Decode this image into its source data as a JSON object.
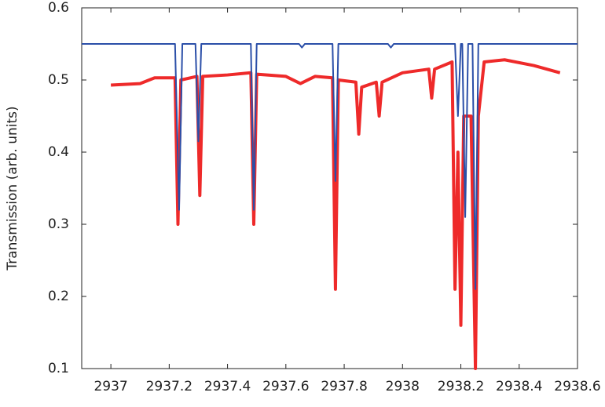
{
  "chart_data": {
    "type": "line",
    "y_label": "Transmission (arb. units)",
    "xlim": [
      2936.9,
      2938.6
    ],
    "xticks": [
      2937,
      2937.2,
      2937.4,
      2937.6,
      2937.8,
      2938,
      2938.2,
      2938.4,
      2938.6
    ],
    "ylim": [
      0.1,
      0.6
    ],
    "yticks": [
      0.1,
      0.2,
      0.3,
      0.4,
      0.5,
      0.6
    ],
    "grid": false,
    "series": [
      {
        "color": "#ee2a2a",
        "x": [
          2937.0,
          2937.1,
          2937.15,
          2937.22,
          2937.23,
          2937.24,
          2937.295,
          2937.305,
          2937.315,
          2937.4,
          2937.48,
          2937.49,
          2937.5,
          2937.6,
          2937.65,
          2937.7,
          2937.76,
          2937.77,
          2937.78,
          2937.84,
          2937.85,
          2937.86,
          2937.91,
          2937.92,
          2937.93,
          2938.0,
          2938.09,
          2938.1,
          2938.11,
          2938.17,
          2938.18,
          2938.19,
          2938.2,
          2938.21,
          2938.235,
          2938.25,
          2938.26,
          2938.28,
          2938.35,
          2938.45,
          2938.54
        ],
        "values": [
          0.493,
          0.495,
          0.503,
          0.503,
          0.3,
          0.5,
          0.505,
          0.34,
          0.505,
          0.507,
          0.51,
          0.3,
          0.508,
          0.505,
          0.495,
          0.505,
          0.503,
          0.21,
          0.5,
          0.497,
          0.425,
          0.49,
          0.497,
          0.45,
          0.497,
          0.51,
          0.515,
          0.475,
          0.515,
          0.525,
          0.21,
          0.4,
          0.16,
          0.45,
          0.45,
          0.1,
          0.45,
          0.525,
          0.528,
          0.52,
          0.51
        ]
      },
      {
        "color": "#2b4fa8",
        "x": [
          2936.9,
          2937.22,
          2937.234,
          2937.245,
          2937.29,
          2937.3,
          2937.31,
          2937.48,
          2937.49,
          2937.5,
          2937.645,
          2937.655,
          2937.665,
          2937.76,
          2937.77,
          2937.78,
          2937.95,
          2937.96,
          2937.97,
          2938.18,
          2938.19,
          2938.2,
          2938.205,
          2938.215,
          2938.225,
          2938.24,
          2938.25,
          2938.26,
          2938.6
        ],
        "values": [
          0.55,
          0.55,
          0.32,
          0.55,
          0.55,
          0.415,
          0.55,
          0.55,
          0.32,
          0.55,
          0.55,
          0.545,
          0.55,
          0.55,
          0.36,
          0.55,
          0.55,
          0.545,
          0.55,
          0.55,
          0.45,
          0.55,
          0.55,
          0.31,
          0.55,
          0.55,
          0.21,
          0.55,
          0.55
        ]
      }
    ]
  }
}
